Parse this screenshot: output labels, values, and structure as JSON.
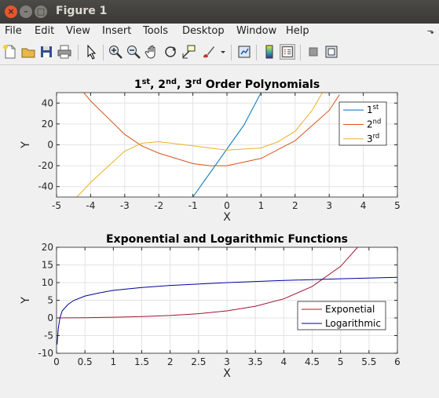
{
  "window": {
    "title": "Figure 1"
  },
  "menu": [
    "File",
    "Edit",
    "View",
    "Insert",
    "Tools",
    "Desktop",
    "Window",
    "Help"
  ],
  "menu_overflow": "⬎",
  "toolbar": [
    {
      "icon": "new-figure-icon"
    },
    {
      "icon": "open-file-icon"
    },
    {
      "icon": "save-icon"
    },
    {
      "icon": "print-icon"
    },
    {
      "icon": "pointer-icon"
    },
    {
      "icon": "zoom-in-icon"
    },
    {
      "icon": "zoom-out-icon"
    },
    {
      "icon": "pan-icon"
    },
    {
      "icon": "rotate-3d-icon"
    },
    {
      "icon": "data-cursor-icon"
    },
    {
      "icon": "brush-icon"
    },
    {
      "icon": "link-plot-icon"
    },
    {
      "icon": "colorbar-icon"
    },
    {
      "icon": "legend-icon"
    },
    {
      "icon": "hide-plot-tools-icon"
    },
    {
      "icon": "show-plot-tools-icon"
    }
  ],
  "chart_data": [
    {
      "type": "line",
      "title": "1st, 2nd, 3rd Order Polynomials",
      "title_parts": [
        {
          "text": "1",
          "sup": false
        },
        {
          "text": "st",
          "sup": true
        },
        {
          "text": ", 2",
          "sup": false
        },
        {
          "text": "nd",
          "sup": true
        },
        {
          "text": ", 3",
          "sup": false
        },
        {
          "text": "rd",
          "sup": true
        },
        {
          "text": " Order Polynomials",
          "sup": false
        }
      ],
      "xlabel": "X",
      "ylabel": "Y",
      "xlim": [
        -5,
        5
      ],
      "ylim": [
        -50,
        50
      ],
      "xticks": [
        -5,
        -4,
        -3,
        -2,
        -1,
        0,
        1,
        2,
        3,
        4,
        5
      ],
      "yticks": [
        -40,
        -20,
        0,
        20,
        40
      ],
      "grid": true,
      "legend": "top-right",
      "series": [
        {
          "name": "1st",
          "legend_parts": [
            {
              "text": "1",
              "sup": false
            },
            {
              "text": "st",
              "sup": true
            }
          ],
          "color": "#0072bd",
          "x": [
            -1,
            -0.5,
            0,
            0.5,
            1
          ],
          "y": [
            -50,
            -27,
            -4,
            19,
            50
          ]
        },
        {
          "name": "2nd",
          "legend_parts": [
            {
              "text": "2",
              "sup": false
            },
            {
              "text": "nd",
              "sup": true
            }
          ],
          "color": "#d95319",
          "x": [
            -4.2,
            -4,
            -3,
            -2.5,
            -2,
            -1,
            -0.5,
            0,
            1,
            2,
            3,
            3.3
          ],
          "y": [
            50,
            42,
            10,
            -1,
            -8,
            -18,
            -20,
            -20,
            -13,
            4,
            33,
            48
          ]
        },
        {
          "name": "3rd",
          "legend_parts": [
            {
              "text": "3",
              "sup": false
            },
            {
              "text": "rd",
              "sup": true
            }
          ],
          "color": "#edb120",
          "x": [
            -4.4,
            -4,
            -3,
            -2.5,
            -2,
            -1,
            0,
            1,
            1.5,
            2,
            2.5,
            2.8
          ],
          "y": [
            -50,
            -36,
            -6,
            1.5,
            3,
            -1,
            -5,
            -3,
            3,
            13,
            33,
            50
          ]
        }
      ]
    },
    {
      "type": "line",
      "title": "Exponential and Logarithmic Functions",
      "xlabel": "X",
      "ylabel": "Y",
      "xlim": [
        0,
        6
      ],
      "ylim": [
        -10,
        20
      ],
      "xticks": [
        0,
        0.5,
        1,
        1.5,
        2,
        2.5,
        3,
        3.5,
        4,
        4.5,
        5,
        5.5,
        6
      ],
      "yticks": [
        -10,
        -5,
        0,
        5,
        10,
        15,
        20
      ],
      "grid": true,
      "legend": "bottom-right",
      "series": [
        {
          "name": "Exponetial",
          "color": "#a2142f",
          "x": [
            0,
            0.5,
            1,
            1.5,
            2,
            2.5,
            3,
            3.5,
            4,
            4.5,
            5,
            5.3
          ],
          "y": [
            0,
            0.05,
            0.2,
            0.4,
            0.7,
            1.2,
            2.0,
            3.3,
            5.4,
            8.9,
            14.6,
            20
          ]
        },
        {
          "name": "Logarithmic",
          "color": "#0000a0",
          "x": [
            0.01,
            0.03,
            0.06,
            0.1,
            0.2,
            0.3,
            0.5,
            0.75,
            1,
            1.5,
            2,
            3,
            4,
            5,
            6
          ],
          "y": [
            -7.5,
            -3,
            0,
            2,
            3.8,
            4.9,
            6.2,
            7.1,
            7.8,
            8.6,
            9.2,
            10,
            10.6,
            11.1,
            11.5
          ]
        }
      ]
    }
  ]
}
